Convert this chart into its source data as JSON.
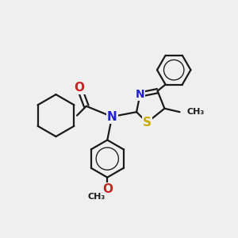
{
  "bg_color": "#efefef",
  "bond_color": "#1a1a1a",
  "bond_width": 1.6,
  "atoms": {
    "N": {
      "color": "#2020cc",
      "fontsize": 10
    },
    "O": {
      "color": "#cc2020",
      "fontsize": 10
    },
    "S": {
      "color": "#ccaa00",
      "fontsize": 10
    }
  },
  "label_fontsize": 9,
  "scale": 1.0
}
